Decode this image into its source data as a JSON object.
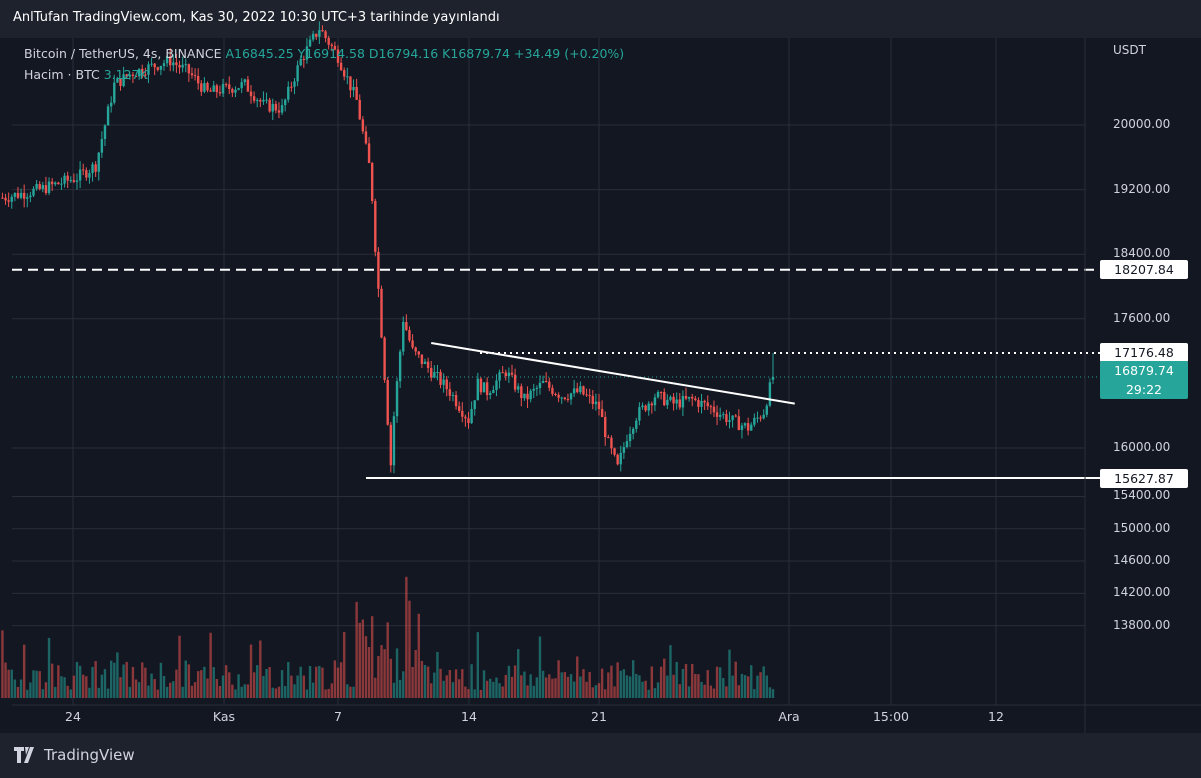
{
  "publisher_line": "AnlTufan TradingView.com, Kas 30, 2022 10:30 UTC+3 tarihinde yayınlandı",
  "legend": {
    "symbol": "Bitcoin / TetherUS, 4s, BINANCE",
    "open": "A16845.25",
    "high": "Y16914.58",
    "low": "D16794.16",
    "close": "K16879.74",
    "change": "+34.49 (+0.20%)",
    "volume_label": "Hacim · BTC",
    "volume_value": "3.127K"
  },
  "footer": {
    "brand": "TradingView"
  },
  "colors": {
    "up": "#26a69a",
    "down": "#ef5350",
    "background": "#131722",
    "grid": "#2a2e39"
  },
  "chart_data": {
    "type": "candlestick",
    "currency": "USDT",
    "y_ticks": [
      13800,
      14200,
      14600,
      15000,
      15400,
      16000,
      17600,
      18400,
      19200,
      20000
    ],
    "y_tick_labels": [
      "13800.00",
      "14200.00",
      "14600.00",
      "15000.00",
      "15400.00",
      "16000.00",
      "17600.00",
      "18400.00",
      "19200.00",
      "20000.00"
    ],
    "x_ticks": [
      "24",
      "Kas",
      "7",
      "14",
      "21",
      "Ara",
      "15:00",
      "12"
    ],
    "levels": [
      {
        "price": 18207.84,
        "label": "18207.84",
        "style": "dashed"
      },
      {
        "price": 17176.48,
        "label": "17176.48",
        "style": "dotted"
      },
      {
        "price": 15627.87,
        "label": "15627.87",
        "style": "solid"
      }
    ],
    "current": {
      "price": 16879.74,
      "label": "16879.74",
      "countdown": "29:22"
    },
    "trendline": {
      "from": {
        "date": "2022-11-12",
        "price": 17300
      },
      "to": {
        "date": "2022-12-01 12:00",
        "price": 16550
      }
    },
    "close_path": [
      [
        "2022-10-20",
        19100
      ],
      [
        "2022-10-22",
        19200
      ],
      [
        "2022-10-24",
        19350
      ],
      [
        "2022-10-25",
        19500
      ],
      [
        "2022-10-26",
        20500
      ],
      [
        "2022-10-27",
        20650
      ],
      [
        "2022-10-29",
        20800
      ],
      [
        "2022-10-30",
        20650
      ],
      [
        "2022-10-31",
        20400
      ],
      [
        "2022-11-02",
        20500
      ],
      [
        "2022-11-03",
        20250
      ],
      [
        "2022-11-04",
        20200
      ],
      [
        "2022-11-05",
        20800
      ],
      [
        "2022-11-06",
        21200
      ],
      [
        "2022-11-07",
        20850
      ],
      [
        "2022-11-08",
        20300
      ],
      [
        "2022-11-08 18:00",
        19400
      ],
      [
        "2022-11-09",
        18500
      ],
      [
        "2022-11-09 12:00",
        16900
      ],
      [
        "2022-11-09 20:00",
        15800
      ],
      [
        "2022-11-10",
        16400
      ],
      [
        "2022-11-10 12:00",
        17600
      ],
      [
        "2022-11-11",
        17200
      ],
      [
        "2022-11-12",
        16950
      ],
      [
        "2022-11-13",
        16700
      ],
      [
        "2022-11-14",
        16350
      ],
      [
        "2022-11-14 12:00",
        16800
      ],
      [
        "2022-11-15",
        16700
      ],
      [
        "2022-11-16",
        16950
      ],
      [
        "2022-11-17",
        16600
      ],
      [
        "2022-11-18",
        16800
      ],
      [
        "2022-11-19",
        16650
      ],
      [
        "2022-11-20",
        16700
      ],
      [
        "2022-11-21",
        16500
      ],
      [
        "2022-11-21 12:00",
        16050
      ],
      [
        "2022-11-22",
        15750
      ],
      [
        "2022-11-22 12:00",
        16150
      ],
      [
        "2022-11-23",
        16400
      ],
      [
        "2022-11-24",
        16650
      ],
      [
        "2022-11-25",
        16550
      ],
      [
        "2022-11-26",
        16600
      ],
      [
        "2022-11-27",
        16500
      ],
      [
        "2022-11-28",
        16350
      ],
      [
        "2022-11-29",
        16250
      ],
      [
        "2022-11-29 20:00",
        16450
      ],
      [
        "2022-11-30",
        16600
      ],
      [
        "2022-11-30 08:00",
        16879.74
      ]
    ]
  }
}
